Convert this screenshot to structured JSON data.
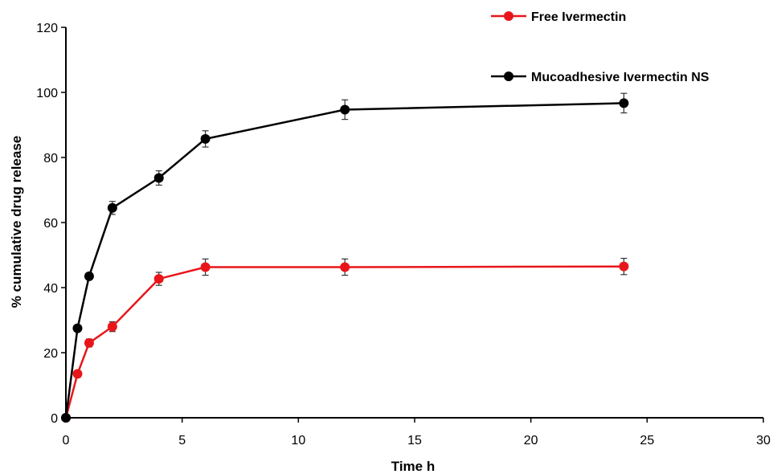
{
  "chart_data": {
    "type": "line",
    "xlabel": "Time h",
    "ylabel": "% cumulative drug release",
    "xlim": [
      0,
      30
    ],
    "ylim": [
      0,
      120
    ],
    "xticks": [
      0,
      5,
      10,
      15,
      20,
      25,
      30
    ],
    "yticks": [
      0,
      20,
      40,
      60,
      80,
      100,
      120
    ],
    "grid": false,
    "legend_position": "top-right",
    "series": [
      {
        "name": "Free Ivermectin",
        "color": "#e8161b",
        "x": [
          0,
          0.5,
          1,
          2,
          4,
          6,
          12,
          24
        ],
        "y": [
          0,
          13.5,
          23,
          28,
          42.7,
          46.3,
          46.3,
          46.5
        ],
        "error": [
          0,
          1,
          1.2,
          1.5,
          2,
          2.5,
          2.5,
          2.5
        ]
      },
      {
        "name": "Mucoadhesive Ivermectin NS",
        "color": "#000000",
        "x": [
          0,
          0.5,
          1,
          2,
          4,
          6,
          12,
          24
        ],
        "y": [
          0,
          27.5,
          43.5,
          64.5,
          73.7,
          85.7,
          94.7,
          96.7
        ],
        "error": [
          0,
          0.8,
          1,
          2,
          2.2,
          2.5,
          3,
          3
        ]
      }
    ]
  }
}
